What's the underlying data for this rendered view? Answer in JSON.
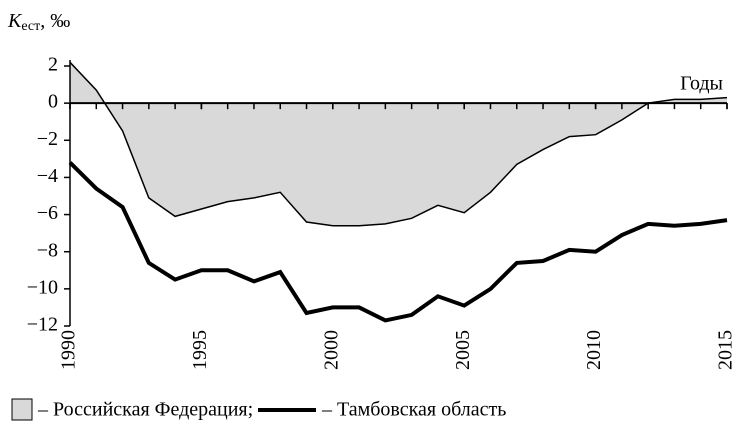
{
  "chart_data": {
    "type": "line",
    "y_label": {
      "main": "K",
      "sub": "ест",
      "rest": ", ‰"
    },
    "x_label": "Годы",
    "x": [
      1990,
      1991,
      1992,
      1993,
      1994,
      1995,
      1996,
      1997,
      1998,
      1999,
      2000,
      2001,
      2002,
      2003,
      2004,
      2005,
      2006,
      2007,
      2008,
      2009,
      2010,
      2011,
      2012,
      2013,
      2014,
      2015
    ],
    "xlim": [
      1990,
      2015
    ],
    "xticks": [
      1990,
      1995,
      2000,
      2005,
      2010,
      2015
    ],
    "ylim": [
      -12,
      2
    ],
    "yticks": [
      {
        "value": 2,
        "label": "2"
      },
      0,
      {
        "value": -2,
        "label": "−2"
      },
      {
        "value": -4,
        "label": "−4"
      },
      {
        "value": -6,
        "label": "−6"
      },
      {
        "value": -8,
        "label": "−8"
      },
      {
        "value": -10,
        "label": "−10"
      },
      {
        "value": -12,
        "label": "−12"
      }
    ],
    "series": [
      {
        "name": "– Российская Федерация;",
        "color": "#d9d9d9",
        "style": "area",
        "values": [
          2.2,
          0.7,
          -1.5,
          -5.1,
          -6.1,
          -5.7,
          -5.3,
          -5.1,
          -4.8,
          -6.4,
          -6.6,
          -6.6,
          -6.5,
          -6.2,
          -5.5,
          -5.9,
          -4.8,
          -3.3,
          -2.5,
          -1.8,
          -1.7,
          -0.9,
          0.0,
          0.2,
          0.2,
          0.3
        ]
      },
      {
        "name": "– Тамбовская область",
        "color": "#000000",
        "style": "line",
        "values": [
          -3.2,
          -4.6,
          -5.6,
          -8.6,
          -9.5,
          -9.0,
          -9.0,
          -9.6,
          -9.1,
          -11.3,
          -11.0,
          -11.0,
          -11.7,
          -11.4,
          -10.4,
          -10.9,
          -10.0,
          -8.6,
          -8.5,
          -7.9,
          -8.0,
          -7.1,
          -6.5,
          -6.6,
          -6.5,
          -6.3
        ]
      }
    ]
  }
}
